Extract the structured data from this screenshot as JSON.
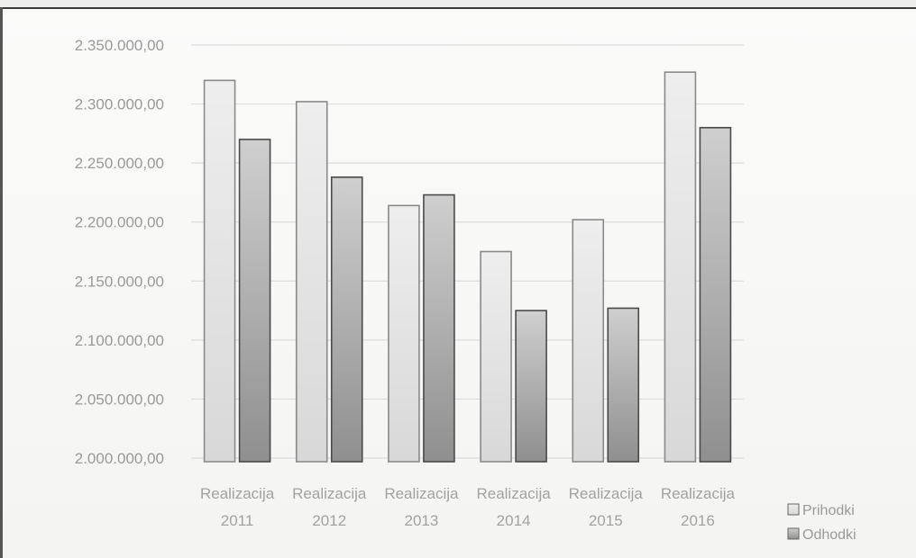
{
  "chart_data": {
    "type": "bar",
    "title": "",
    "xlabel": "",
    "ylabel": "",
    "ylim": [
      2000000,
      2350000
    ],
    "ytick_values": [
      2000000,
      2050000,
      2100000,
      2150000,
      2200000,
      2250000,
      2300000,
      2350000
    ],
    "ytick_labels": [
      "2.000.000,00",
      "2.050.000,00",
      "2.100.000,00",
      "2.150.000,00",
      "2.200.000,00",
      "2.250.000,00",
      "2.300.000,00",
      "2.350.000,00"
    ],
    "categories": [
      [
        "Realizacija",
        "2011"
      ],
      [
        "Realizacija",
        "2012"
      ],
      [
        "Realizacija",
        "2013"
      ],
      [
        "Realizacija",
        "2014"
      ],
      [
        "Realizacija",
        "2015"
      ],
      [
        "Realizacija",
        "2016"
      ]
    ],
    "series": [
      {
        "name": "Prihodki",
        "color": "#e6e6e6",
        "values": [
          2320000,
          2302000,
          2214000,
          2175000,
          2202000,
          2327000
        ]
      },
      {
        "name": "Odhodki",
        "color": "#b0b0b0",
        "values": [
          2270000,
          2238000,
          2223000,
          2125000,
          2127000,
          2280000
        ]
      }
    ],
    "grid": true,
    "legend_position": "bottom-right"
  }
}
